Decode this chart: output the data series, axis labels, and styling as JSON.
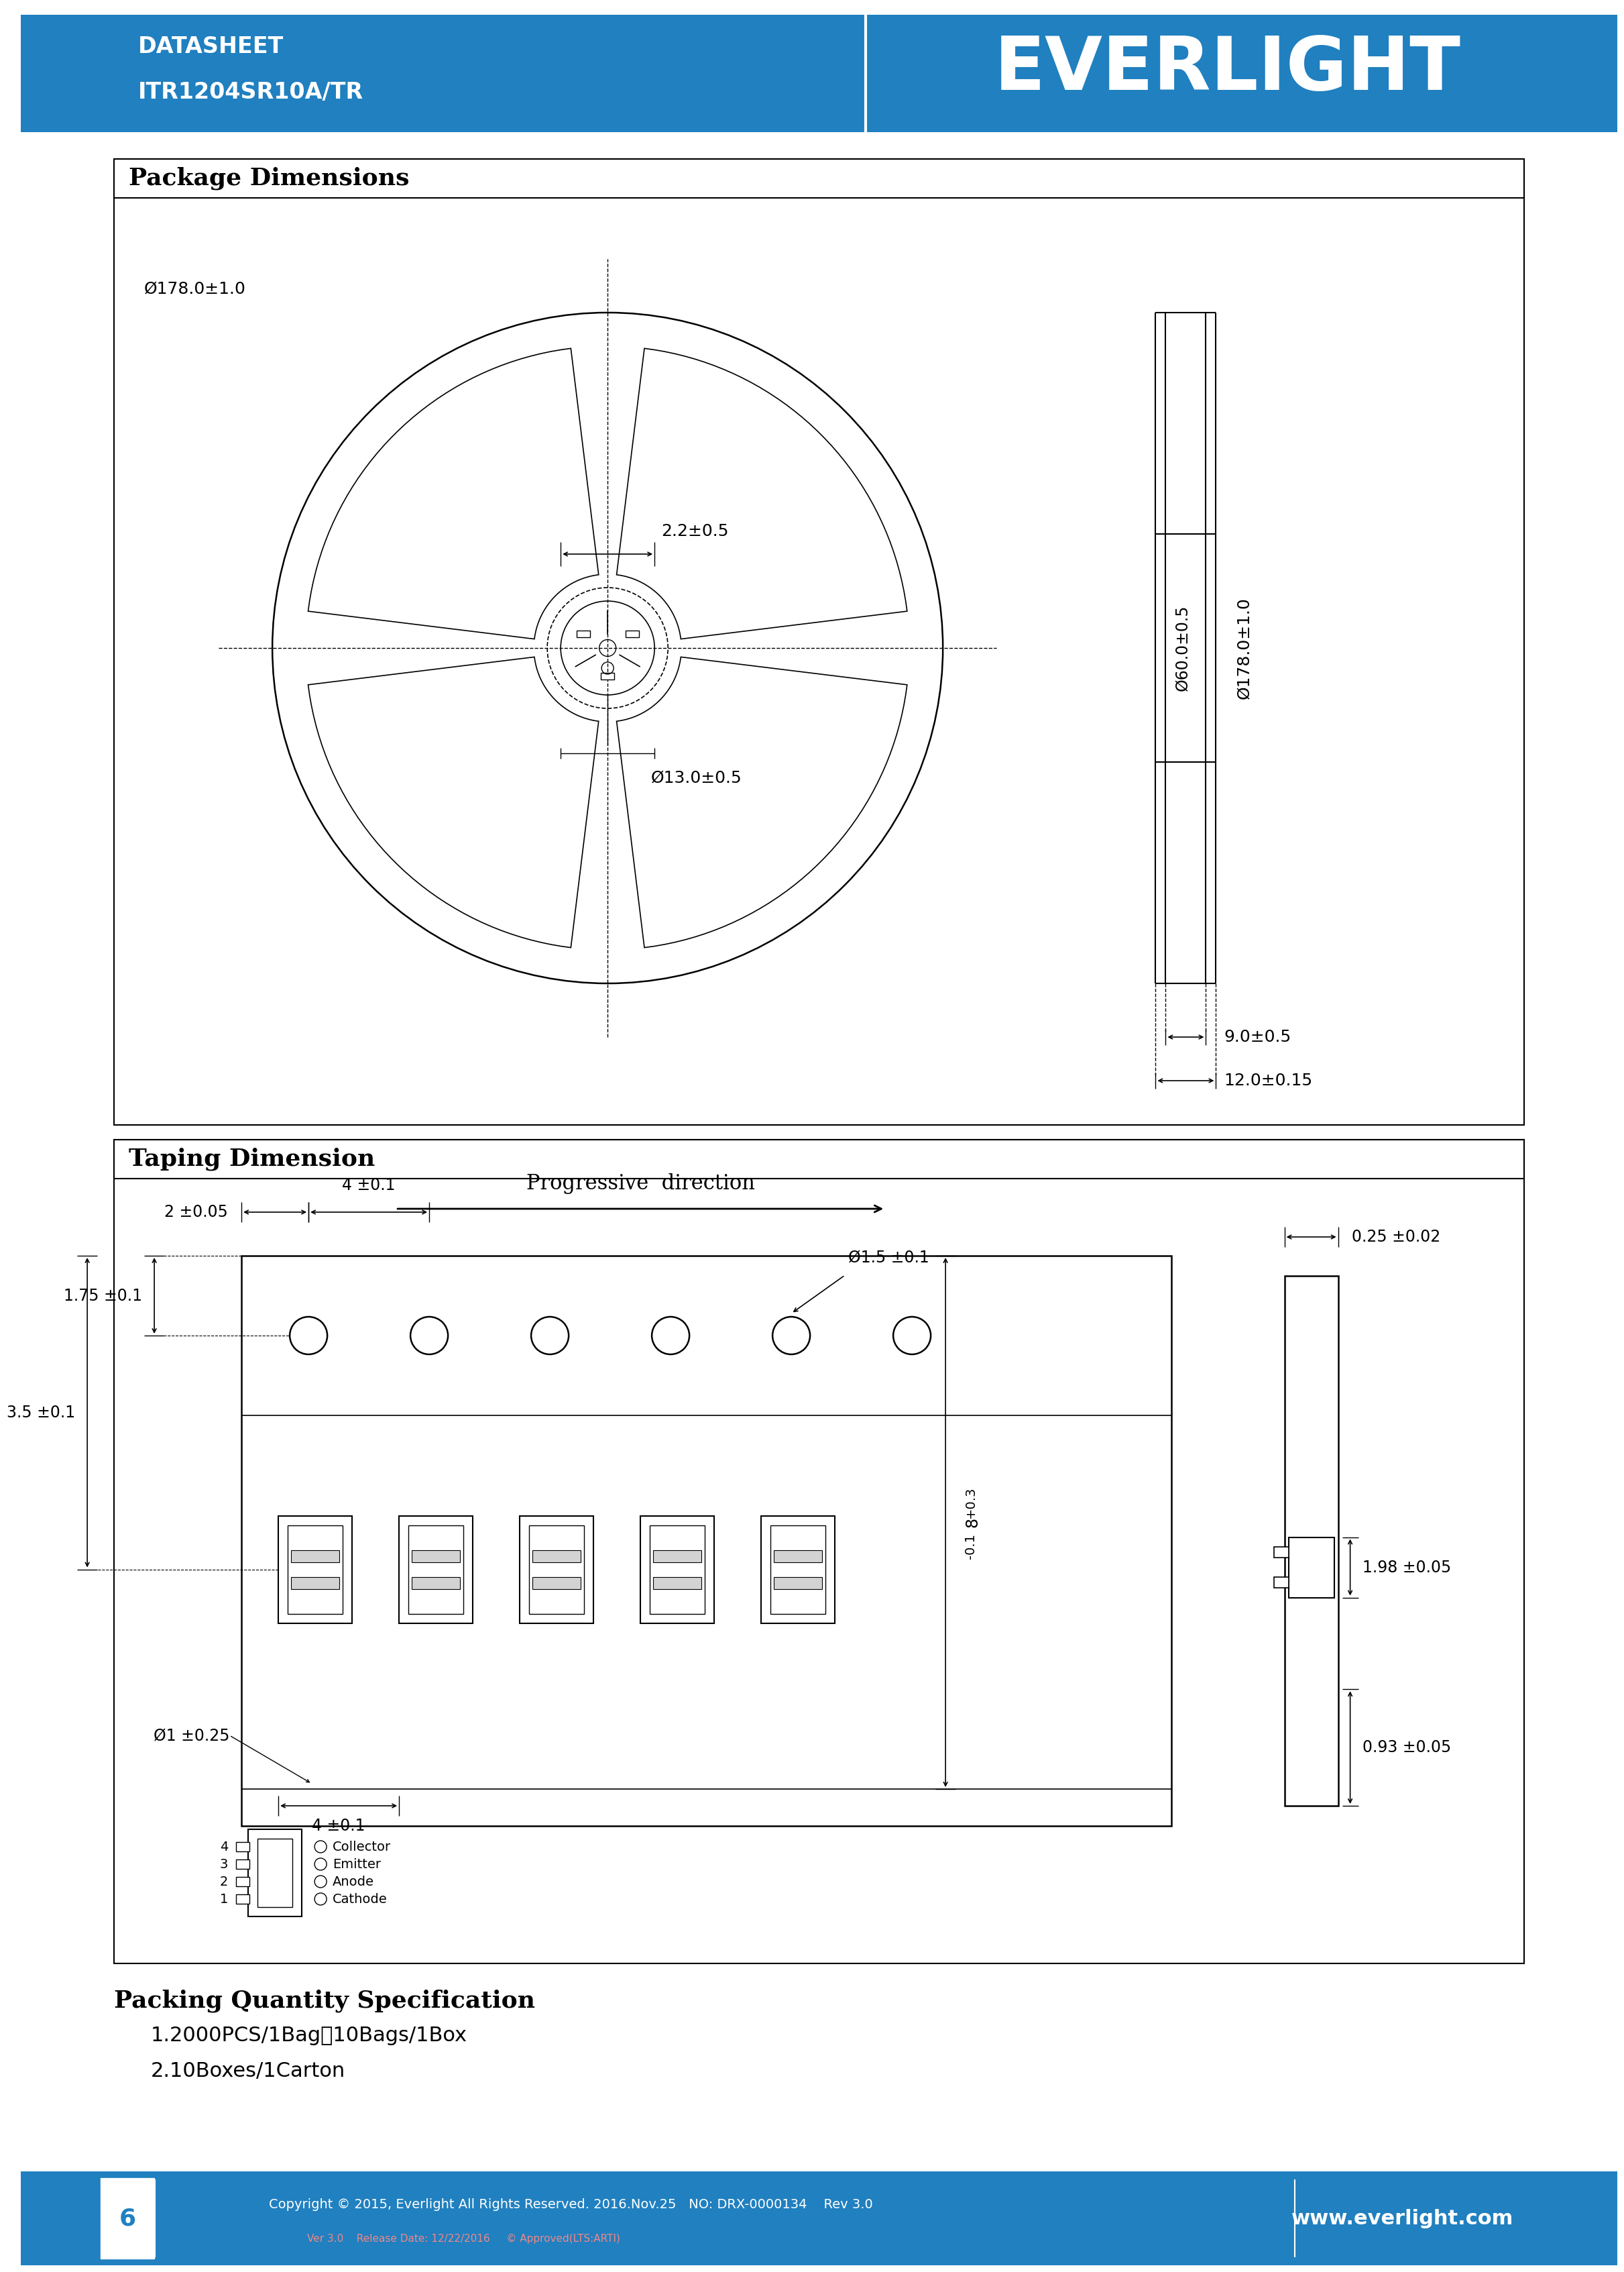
{
  "header_bg_color": "#2080c0",
  "header_text_color": "#ffffff",
  "header_line1": "DATASHEET",
  "header_line2": "ITR1204SR10A/TR",
  "company_name": "EVERLIGHT",
  "footer_bg_color": "#2080c0",
  "footer_text_color": "#ffffff",
  "footer_left_num": "6",
  "footer_copyright": "Copyright © 2015, Everlight All Rights Reserved. 2016.Nov.25   NO: DRX-0000134    Rev 3.0",
  "footer_sub": "Ver 3.0    Release Date: 12/22/2016     © Approved(LTS:ARTI)",
  "footer_website": "www.everlight.com",
  "page_bg": "#ffffff",
  "section1_title": "Package Dimensions",
  "section2_title": "Taping Dimension",
  "packing_title": "Packing Quantity Specification",
  "packing_line1": "1.2000PCS/1Bag、10Bags/1Box",
  "packing_line2": "2.10Boxes/1Carton",
  "watermark_color": "#c8dcf0",
  "pkg_hub_dim": "2.2±0.5",
  "pkg_inner_hub": "Ø13.0±0.5",
  "pkg_outer_reel": "Ø178.0±1.0",
  "pkg_width1": "9.0±0.5",
  "pkg_width2": "12.0±0.15",
  "pkg_side_inner": "Ø60.0±0.5",
  "tape_prog_dir": "Progressive  direction",
  "tape_dim_a": "2 ±0.05",
  "tape_dim_b": "4 ±0.1",
  "tape_dim_c": "Ø1.5 ±0.1",
  "tape_dim_d": "0.25 ±0.02",
  "tape_dim_e": "1.75 ±0.1",
  "tape_dim_f": "3.5 ±0.1",
  "tape_dim_g": "Ø1 ±0.25",
  "tape_dim_h": "4 ±0.1",
  "tape_dim_i": "+0.3\n8\n-0.1",
  "tape_dim_j": "1.98 ±0.05",
  "tape_dim_k": "0.93 ±0.05",
  "tape_labels": [
    "Collector",
    "Emitter",
    "Anode",
    "Cathode"
  ],
  "tape_label_nums": [
    "4",
    "3",
    "2",
    "1"
  ]
}
